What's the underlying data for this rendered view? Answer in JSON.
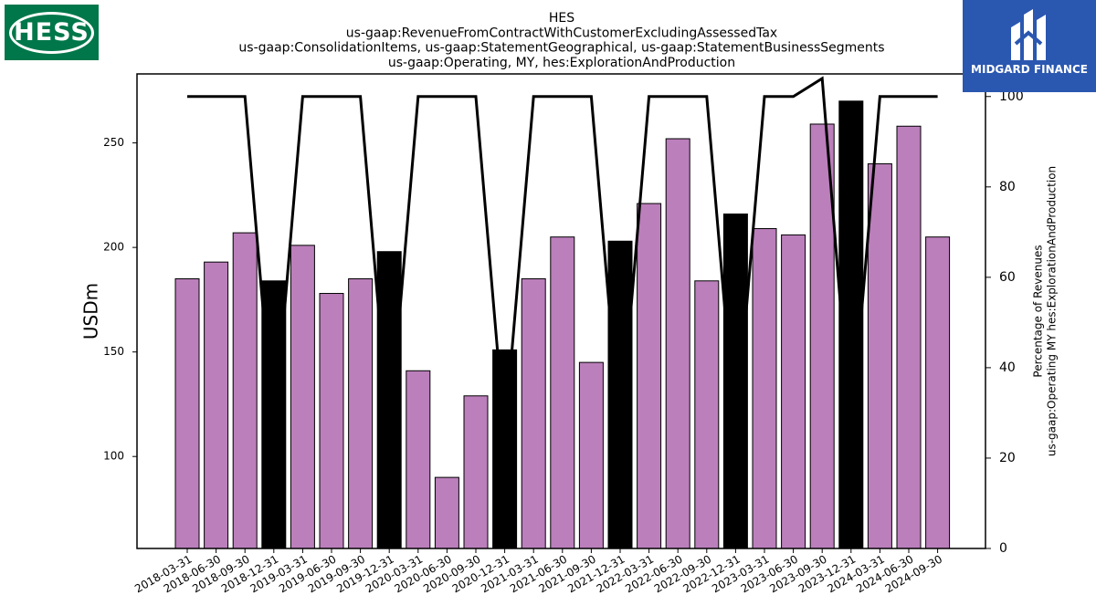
{
  "title_lines": [
    "HES",
    "us-gaap:RevenueFromContractWithCustomerExcludingAssessedTax",
    "us-gaap:ConsolidationItems, us-gaap:StatementGeographical, us-gaap:StatementBusinessSegments",
    "us-gaap:Operating, MY, hes:ExplorationAndProduction"
  ],
  "logos": {
    "left": {
      "text": "HESS",
      "bg": "#00774a"
    },
    "right": {
      "text": "MIDGARD FINANCE",
      "bg": "#2a57b0"
    }
  },
  "chart_data": {
    "type": "bar",
    "categories": [
      "2018-03-31",
      "2018-06-30",
      "2018-09-30",
      "2018-12-31",
      "2019-03-31",
      "2019-06-30",
      "2019-09-30",
      "2019-12-31",
      "2020-03-31",
      "2020-06-30",
      "2020-09-30",
      "2020-12-31",
      "2021-03-31",
      "2021-06-30",
      "2021-09-30",
      "2021-12-31",
      "2022-03-31",
      "2022-06-30",
      "2022-09-30",
      "2022-12-31",
      "2023-03-31",
      "2023-06-30",
      "2023-09-30",
      "2023-12-31",
      "2024-03-31",
      "2024-06-30",
      "2024-09-30"
    ],
    "values": [
      185,
      193,
      207,
      184,
      201,
      178,
      185,
      198,
      141,
      90,
      129,
      151,
      185,
      205,
      145,
      203,
      221,
      252,
      184,
      216,
      209,
      206,
      259,
      270,
      240,
      258,
      205
    ],
    "bar_colors": [
      "#bb7fbb",
      "#bb7fbb",
      "#bb7fbb",
      "#000000",
      "#bb7fbb",
      "#bb7fbb",
      "#bb7fbb",
      "#000000",
      "#bb7fbb",
      "#bb7fbb",
      "#bb7fbb",
      "#000000",
      "#bb7fbb",
      "#bb7fbb",
      "#bb7fbb",
      "#000000",
      "#bb7fbb",
      "#bb7fbb",
      "#bb7fbb",
      "#000000",
      "#bb7fbb",
      "#bb7fbb",
      "#bb7fbb",
      "#000000",
      "#bb7fbb",
      "#bb7fbb",
      "#bb7fbb"
    ],
    "percentage": [
      100,
      100,
      100,
      25,
      100,
      100,
      100,
      25,
      100,
      100,
      100,
      25,
      100,
      100,
      100,
      25,
      100,
      100,
      100,
      25,
      100,
      100,
      104,
      25,
      100,
      100,
      100
    ],
    "ylabel": "USDm",
    "ylim": [
      56,
      283
    ],
    "yticks": [
      100,
      150,
      200,
      250
    ],
    "y2label_lines": [
      "Percentage of Revenues",
      "us-gaap:Operating MY hes:ExplorationAndProduction"
    ],
    "y2lim": [
      0,
      105
    ],
    "y2ticks": [
      0,
      20,
      40,
      60,
      80,
      100
    ],
    "line_color": "#000000",
    "grid": false
  }
}
